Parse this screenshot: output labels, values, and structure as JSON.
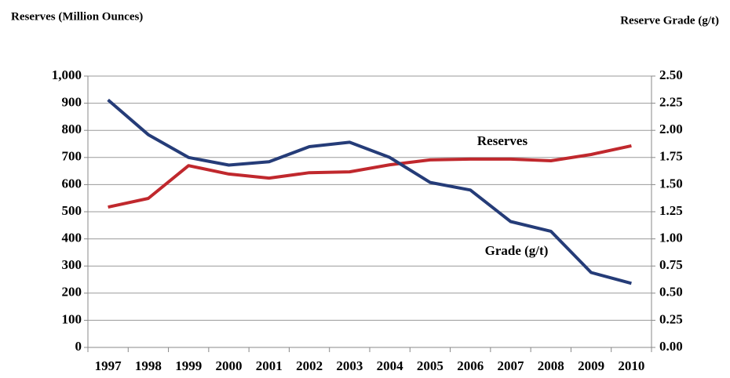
{
  "chart_data": {
    "type": "line",
    "y_label": "Reserves (Million Ounces)",
    "y2_label": "Reserve Grade (g/t)",
    "categories": [
      "1997",
      "1998",
      "1999",
      "2000",
      "2001",
      "2002",
      "2003",
      "2004",
      "2005",
      "2006",
      "2007",
      "2008",
      "2009",
      "2010"
    ],
    "series": [
      {
        "name": "Reserves",
        "color": "#c0282d",
        "values": [
          517,
          549,
          670,
          639,
          624,
          644,
          647,
          673,
          691,
          694,
          694,
          688,
          711,
          743
        ]
      },
      {
        "name": "Grade (g/t)",
        "color": "#253c78",
        "axis": "y2",
        "values": [
          2.28,
          1.96,
          1.75,
          1.68,
          1.71,
          1.85,
          1.89,
          1.75,
          1.52,
          1.45,
          1.16,
          1.07,
          0.69,
          0.59
        ]
      }
    ],
    "ylim": [
      0,
      1000
    ],
    "yticks": [
      0,
      100,
      200,
      300,
      400,
      500,
      600,
      700,
      800,
      900,
      {
        "value": 1000,
        "label": "1,000"
      }
    ],
    "y2lim": [
      0,
      2.5
    ],
    "y2ticks": [
      {
        "value": 0,
        "label": "0.00"
      },
      {
        "value": 0.25,
        "label": "0.25"
      },
      {
        "value": 0.5,
        "label": "0.50"
      },
      {
        "value": 0.75,
        "label": "0.75"
      },
      {
        "value": 1,
        "label": "1.00"
      },
      {
        "value": 1.25,
        "label": "1.25"
      },
      {
        "value": 1.5,
        "label": "1.50"
      },
      {
        "value": 1.75,
        "label": "1.75"
      },
      {
        "value": 2,
        "label": "2.00"
      },
      {
        "value": 2.25,
        "label": "2.25"
      },
      {
        "value": 2.5,
        "label": "2.50"
      }
    ],
    "grid": true
  }
}
